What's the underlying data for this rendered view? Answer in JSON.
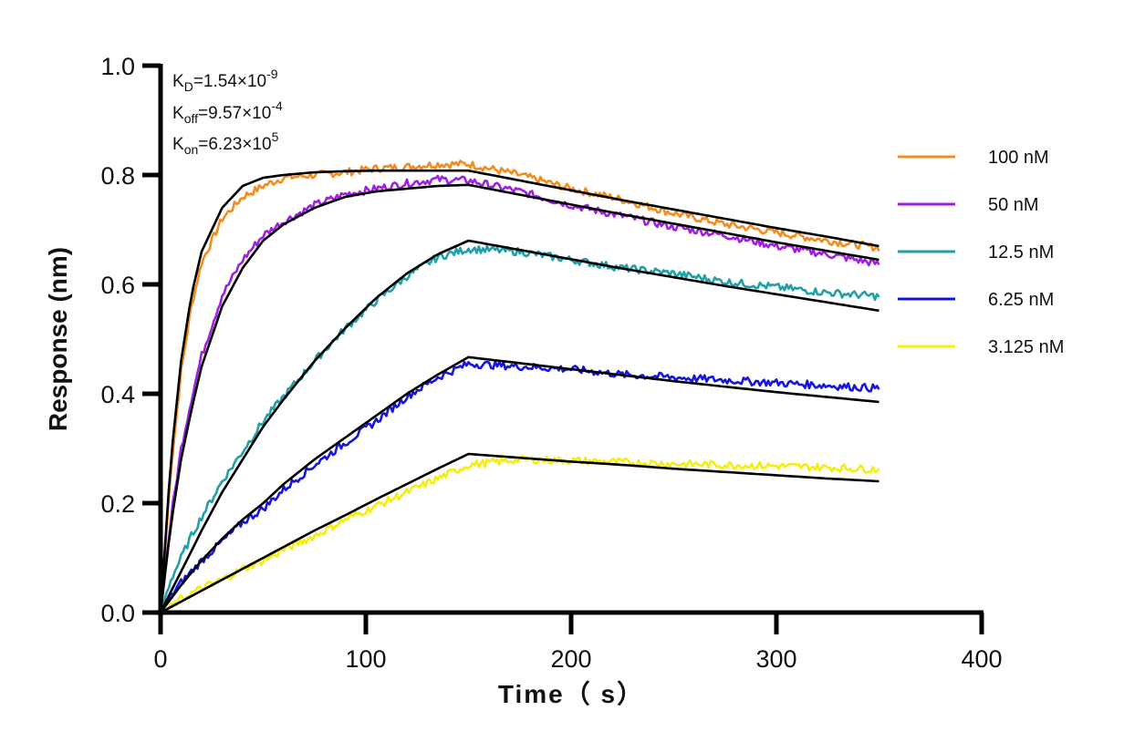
{
  "chart_data": {
    "type": "line",
    "title": "",
    "xlabel": "Time（ s）",
    "ylabel": "Response (nm)",
    "xlim": [
      0,
      400
    ],
    "ylim": [
      0,
      1.0
    ],
    "xticks": [
      0,
      100,
      200,
      300,
      400
    ],
    "xtick_labels": [
      "0",
      "100",
      "200",
      "300",
      "400"
    ],
    "yticks": [
      0,
      0.2,
      0.4,
      0.6,
      0.8,
      1.0
    ],
    "ytick_labels": [
      "0.0",
      "0.2",
      "0.4",
      "0.6",
      "0.8",
      "1.0"
    ],
    "grid": false,
    "legend_position": "right",
    "annotations": {
      "kd": {
        "label": "K",
        "sub": "D",
        "value": "=1.54×10",
        "exp": "-9"
      },
      "koff": {
        "label": "K",
        "sub": "off",
        "value": "=9.57×10",
        "exp": "-4"
      },
      "kon": {
        "label": "K",
        "sub": "on",
        "value": "=6.23×10",
        "exp": "5"
      }
    },
    "association_end": 150,
    "series": [
      {
        "name": "100 nM",
        "color": "#F28C1E",
        "x": [
          0,
          5,
          10,
          15,
          20,
          30,
          40,
          50,
          60,
          75,
          90,
          105,
          120,
          135,
          150,
          175,
          200,
          225,
          250,
          275,
          300,
          325,
          350
        ],
        "values": [
          0,
          0.26,
          0.44,
          0.56,
          0.64,
          0.72,
          0.76,
          0.78,
          0.795,
          0.8,
          0.805,
          0.812,
          0.815,
          0.82,
          0.82,
          0.8,
          0.775,
          0.755,
          0.73,
          0.71,
          0.695,
          0.68,
          0.667
        ],
        "fit": [
          0,
          0.28,
          0.46,
          0.58,
          0.66,
          0.74,
          0.78,
          0.795,
          0.8,
          0.805,
          0.807,
          0.808,
          0.808,
          0.808,
          0.808,
          0.79,
          0.772,
          0.754,
          0.737,
          0.72,
          0.703,
          0.687,
          0.67
        ]
      },
      {
        "name": "50 nM",
        "color": "#A020E0",
        "x": [
          0,
          5,
          10,
          15,
          20,
          30,
          40,
          50,
          60,
          75,
          90,
          105,
          120,
          135,
          150,
          175,
          200,
          225,
          250,
          275,
          300,
          325,
          350
        ],
        "values": [
          0,
          0.17,
          0.3,
          0.39,
          0.47,
          0.58,
          0.645,
          0.69,
          0.715,
          0.745,
          0.765,
          0.775,
          0.785,
          0.792,
          0.79,
          0.77,
          0.745,
          0.725,
          0.705,
          0.69,
          0.67,
          0.655,
          0.637
        ],
        "fit": [
          0,
          0.16,
          0.28,
          0.37,
          0.45,
          0.56,
          0.63,
          0.68,
          0.71,
          0.74,
          0.76,
          0.77,
          0.775,
          0.78,
          0.782,
          0.764,
          0.746,
          0.728,
          0.711,
          0.694,
          0.677,
          0.661,
          0.645
        ]
      },
      {
        "name": "12.5 nM",
        "color": "#20A0A8",
        "x": [
          0,
          5,
          10,
          15,
          20,
          30,
          40,
          50,
          60,
          75,
          90,
          105,
          120,
          135,
          150,
          175,
          200,
          225,
          250,
          275,
          300,
          325,
          350
        ],
        "values": [
          0,
          0.06,
          0.1,
          0.14,
          0.175,
          0.24,
          0.295,
          0.35,
          0.395,
          0.46,
          0.52,
          0.57,
          0.615,
          0.65,
          0.665,
          0.66,
          0.645,
          0.63,
          0.62,
          0.605,
          0.595,
          0.585,
          0.578
        ],
        "fit": [
          0,
          0.038,
          0.075,
          0.112,
          0.15,
          0.22,
          0.28,
          0.34,
          0.39,
          0.46,
          0.52,
          0.575,
          0.62,
          0.655,
          0.68,
          0.663,
          0.646,
          0.629,
          0.613,
          0.597,
          0.582,
          0.567,
          0.552
        ]
      },
      {
        "name": "6.25 nM",
        "color": "#1515DD",
        "x": [
          0,
          5,
          10,
          15,
          20,
          30,
          40,
          50,
          60,
          75,
          90,
          105,
          120,
          135,
          150,
          175,
          200,
          225,
          250,
          275,
          300,
          325,
          350
        ],
        "values": [
          0,
          0.03,
          0.055,
          0.075,
          0.095,
          0.13,
          0.165,
          0.19,
          0.225,
          0.27,
          0.31,
          0.35,
          0.395,
          0.43,
          0.455,
          0.45,
          0.445,
          0.435,
          0.43,
          0.425,
          0.42,
          0.415,
          0.41
        ],
        "fit": [
          0,
          0.025,
          0.05,
          0.073,
          0.095,
          0.135,
          0.17,
          0.2,
          0.235,
          0.28,
          0.32,
          0.36,
          0.4,
          0.435,
          0.467,
          0.456,
          0.445,
          0.434,
          0.423,
          0.413,
          0.403,
          0.394,
          0.385
        ]
      },
      {
        "name": "3.125 nM",
        "color": "#F5EE10",
        "x": [
          0,
          5,
          10,
          15,
          20,
          30,
          40,
          50,
          60,
          75,
          90,
          105,
          120,
          135,
          150,
          175,
          200,
          225,
          250,
          275,
          300,
          325,
          350
        ],
        "values": [
          0,
          0.01,
          0.025,
          0.035,
          0.045,
          0.06,
          0.08,
          0.095,
          0.115,
          0.14,
          0.17,
          0.195,
          0.22,
          0.245,
          0.27,
          0.28,
          0.278,
          0.275,
          0.272,
          0.27,
          0.268,
          0.265,
          0.262
        ],
        "fit": [
          0,
          0.01,
          0.02,
          0.03,
          0.04,
          0.06,
          0.08,
          0.1,
          0.12,
          0.15,
          0.178,
          0.207,
          0.235,
          0.263,
          0.29,
          0.283,
          0.276,
          0.27,
          0.263,
          0.257,
          0.251,
          0.245,
          0.24
        ]
      }
    ]
  }
}
